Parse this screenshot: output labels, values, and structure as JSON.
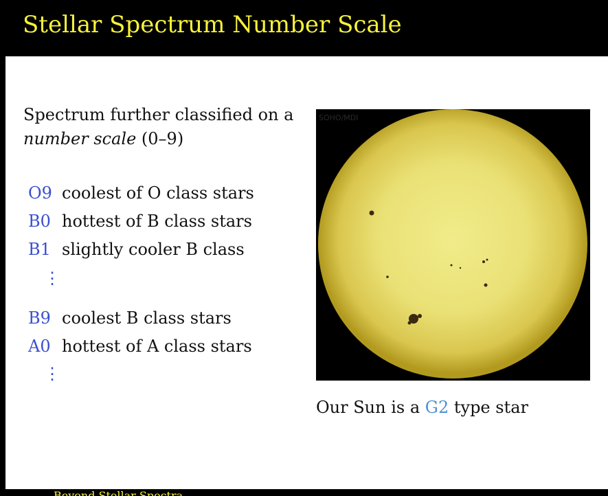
{
  "slide": {
    "title": "Stellar Spectrum Number Scale",
    "intro": {
      "line1": "Spectrum further classified on a",
      "italic": "number scale",
      "rest": " (0–9)"
    },
    "classes": [
      {
        "code": "O9",
        "desc": "coolest of O class stars"
      },
      {
        "code": "B0",
        "desc": "hottest of B class stars"
      },
      {
        "code": "B1",
        "desc": "slightly cooler B class"
      },
      {
        "code": "B9",
        "desc": "coolest B class stars"
      },
      {
        "code": "A0",
        "desc": "hottest of A class stars"
      }
    ],
    "vdots": "⋮",
    "image_label": "SOHO/MDI",
    "caption": {
      "before": "Our Sun is a ",
      "highlight": "G2",
      "after": " type star"
    },
    "footer_text": "Beyond Stellar Spectra"
  },
  "colors": {
    "title": "#f7f23a",
    "class_code": "#3a4fd0",
    "caption_highlight": "#4d8fd8",
    "background": "#000000",
    "panel": "#ffffff"
  }
}
